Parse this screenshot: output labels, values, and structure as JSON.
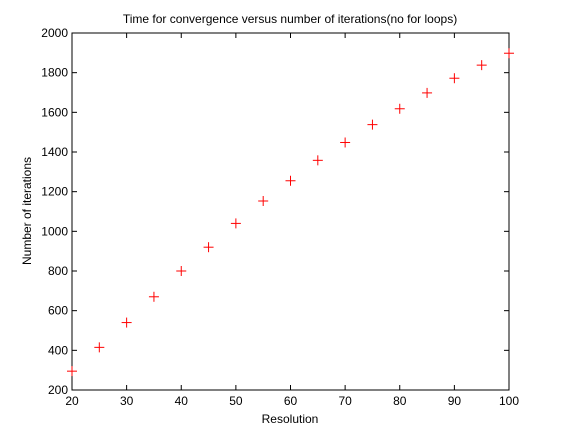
{
  "chart_data": {
    "type": "scatter",
    "title": "Time for convergence versus number of iterations(no for loops)",
    "xlabel": "Resolution",
    "ylabel": "Number of iterations",
    "xlim": [
      20,
      100
    ],
    "ylim": [
      200,
      2000
    ],
    "xticks": [
      "20",
      "30",
      "40",
      "50",
      "60",
      "70",
      "80",
      "90",
      "100"
    ],
    "yticks": [
      "200",
      "400",
      "600",
      "800",
      "1000",
      "1200",
      "1400",
      "1600",
      "1800",
      "2000"
    ],
    "grid": false,
    "legend": "none",
    "marker": "plus",
    "color": "#ff0000",
    "series": [
      {
        "x": [
          20,
          25,
          30,
          35,
          40,
          45,
          50,
          55,
          60,
          65,
          70,
          75,
          80,
          85,
          90,
          95,
          100
        ],
        "y": [
          295,
          415,
          540,
          670,
          800,
          920,
          1040,
          1153,
          1255,
          1358,
          1448,
          1538,
          1618,
          1698,
          1772,
          1838,
          1898
        ]
      }
    ]
  }
}
